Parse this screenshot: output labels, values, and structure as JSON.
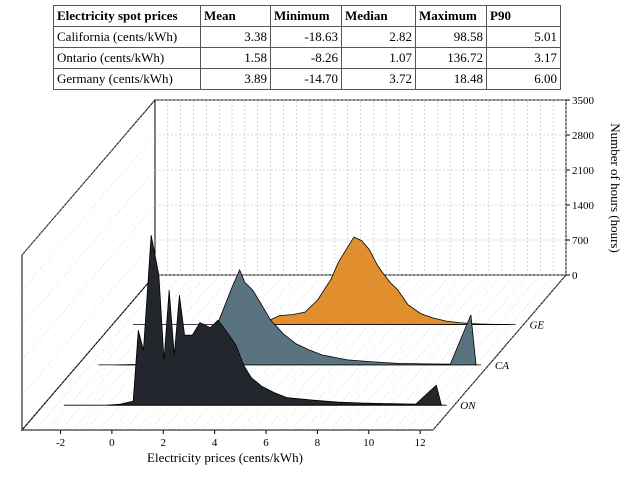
{
  "table": {
    "headers": [
      "Electricity spot prices",
      "Mean",
      "Minimum",
      "Median",
      "Maximum",
      "P90"
    ],
    "rows": [
      [
        "California (cents/kWh)",
        "3.38",
        "-18.63",
        "2.82",
        "98.58",
        "5.01"
      ],
      [
        "Ontario (cents/kWh)",
        "1.58",
        "-8.26",
        "1.07",
        "136.72",
        "3.17"
      ],
      [
        "Germany (cents/kWh)",
        "3.89",
        "-14.70",
        "3.72",
        "18.48",
        "6.00"
      ]
    ]
  },
  "chart_data": {
    "type": "area",
    "xlabel": "Electricity prices (cents/kWh)",
    "ylabel": "Number of hours (hours)",
    "xlim": [
      -3.5,
      12.5
    ],
    "ylim": [
      0,
      3500
    ],
    "x_ticks": [
      -2,
      0,
      2,
      4,
      6,
      8,
      10,
      12
    ],
    "y_ticks": [
      0,
      700,
      1400,
      2100,
      2800,
      3500
    ],
    "grid": true,
    "series": [
      {
        "name": "GE",
        "color": "#e08e2e",
        "x": [
          1.0,
          1.5,
          1.8,
          2.0,
          2.2,
          2.5,
          3.0,
          3.5,
          4.0,
          4.5,
          5.0,
          5.3,
          5.6,
          5.9,
          6.2,
          6.5,
          6.8,
          7.0,
          7.3,
          7.6,
          8.0,
          8.5,
          9.0,
          9.5,
          10.0,
          10.5,
          11.0,
          11.5,
          12.0
        ],
        "values": [
          0,
          20,
          50,
          180,
          90,
          60,
          180,
          200,
          250,
          500,
          900,
          1250,
          1500,
          1750,
          1680,
          1500,
          1200,
          1050,
          850,
          700,
          400,
          220,
          130,
          70,
          40,
          20,
          10,
          5,
          0
        ]
      },
      {
        "name": "CA",
        "color": "#5a7381",
        "x": [
          -2.0,
          -1.0,
          -0.5,
          0.0,
          0.5,
          1.0,
          1.5,
          2.0,
          2.5,
          2.8,
          3.0,
          3.3,
          3.6,
          4.0,
          4.5,
          5.0,
          5.5,
          6.0,
          7.0,
          8.0,
          9.0,
          10.0,
          11.0,
          11.8,
          12.0
        ],
        "values": [
          0,
          10,
          20,
          50,
          100,
          200,
          450,
          900,
          1550,
          1900,
          1650,
          1500,
          1250,
          900,
          620,
          420,
          300,
          200,
          100,
          60,
          30,
          20,
          15,
          1000,
          0
        ]
      },
      {
        "name": "ON",
        "color": "#23272d",
        "x": [
          -1.0,
          -0.5,
          0.0,
          0.2,
          0.4,
          0.7,
          1.0,
          1.2,
          1.4,
          1.6,
          1.8,
          2.0,
          2.3,
          2.6,
          3.0,
          3.3,
          3.6,
          4.0,
          4.3,
          4.6,
          5.0,
          5.5,
          6.0,
          7.0,
          8.0,
          9.0,
          10.0,
          11.0,
          11.8,
          12.0
        ],
        "values": [
          0,
          20,
          80,
          1500,
          1100,
          3400,
          2600,
          900,
          2300,
          1000,
          2200,
          1400,
          1400,
          1650,
          1550,
          1700,
          1500,
          1200,
          800,
          550,
          380,
          250,
          150,
          100,
          60,
          40,
          30,
          20,
          400,
          0
        ]
      }
    ]
  }
}
